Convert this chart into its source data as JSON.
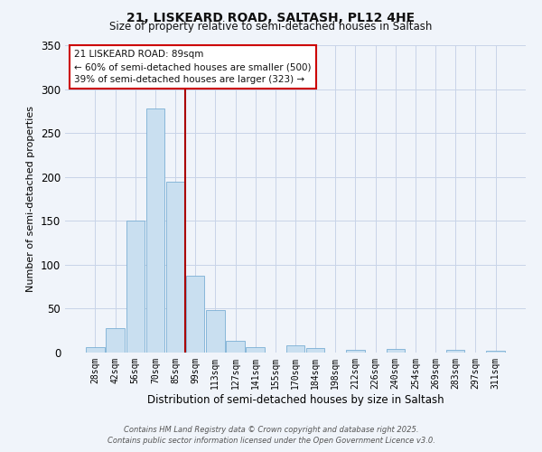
{
  "title": "21, LISKEARD ROAD, SALTASH, PL12 4HE",
  "subtitle": "Size of property relative to semi-detached houses in Saltash",
  "xlabel": "Distribution of semi-detached houses by size in Saltash",
  "ylabel": "Number of semi-detached properties",
  "bin_labels": [
    "28sqm",
    "42sqm",
    "56sqm",
    "70sqm",
    "85sqm",
    "99sqm",
    "113sqm",
    "127sqm",
    "141sqm",
    "155sqm",
    "170sqm",
    "184sqm",
    "198sqm",
    "212sqm",
    "226sqm",
    "240sqm",
    "254sqm",
    "269sqm",
    "283sqm",
    "297sqm",
    "311sqm"
  ],
  "bin_values": [
    6,
    28,
    150,
    278,
    195,
    88,
    48,
    13,
    6,
    0,
    8,
    5,
    0,
    3,
    0,
    4,
    0,
    0,
    3,
    0,
    2
  ],
  "bar_color": "#c9dff0",
  "bar_edge_color": "#7bafd4",
  "vline_color": "#aa0000",
  "property_bin_index": 4,
  "annotation_title": "21 LISKEARD ROAD: 89sqm",
  "annotation_line1": "← 60% of semi-detached houses are smaller (500)",
  "annotation_line2": "39% of semi-detached houses are larger (323) →",
  "annotation_box_color": "#ffffff",
  "annotation_box_edge": "#cc0000",
  "ylim": [
    0,
    350
  ],
  "yticks": [
    0,
    50,
    100,
    150,
    200,
    250,
    300,
    350
  ],
  "footer_line1": "Contains HM Land Registry data © Crown copyright and database right 2025.",
  "footer_line2": "Contains public sector information licensed under the Open Government Licence v3.0.",
  "background_color": "#f0f4fa",
  "grid_color": "#c8d4e8"
}
